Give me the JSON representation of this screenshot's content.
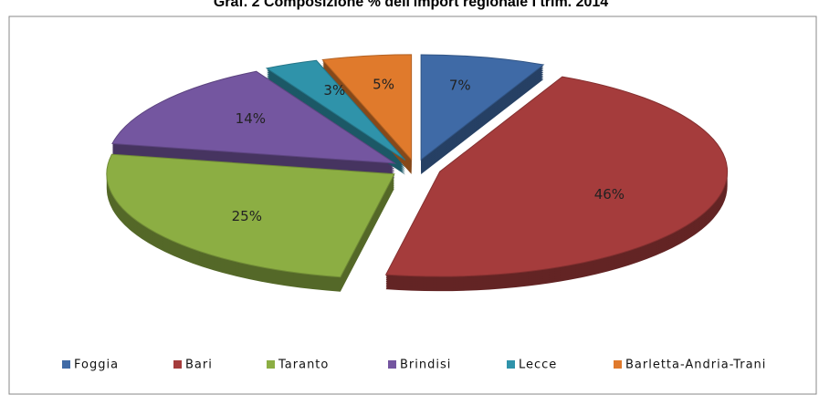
{
  "chart_data": {
    "type": "pie",
    "title": "Graf. 2 Composizione % dell'import regionale I trim. 2014",
    "categories": [
      "Foggia",
      "Bari",
      "Taranto",
      "Brindisi",
      "Lecce",
      "Barletta-Andria-Trani"
    ],
    "values": [
      7,
      46,
      25,
      14,
      3,
      5
    ],
    "value_labels": [
      "7%",
      "46%",
      "25%",
      "14%",
      "3%",
      "5%"
    ],
    "colors": [
      "#3f6aa6",
      "#a53c3c",
      "#8cae43",
      "#7456a0",
      "#2f93aa",
      "#e07a2c"
    ],
    "legend": "bottom"
  }
}
